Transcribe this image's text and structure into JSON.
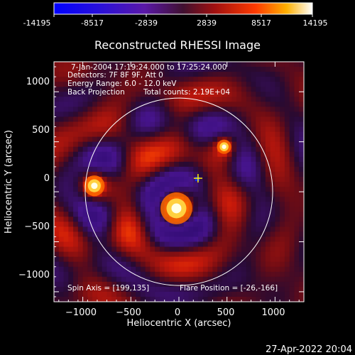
{
  "colorbar": {
    "tick_labels": [
      "-14195",
      "-8517",
      "-2839",
      "2839",
      "8517",
      "14195"
    ],
    "min": -14195,
    "max": 14195
  },
  "timestamp": "27-Apr-2022 20:04",
  "chart_data": {
    "type": "heatmap",
    "title": "Reconstructed RHESSI Image",
    "xlabel": "Heliocentric X (arcsec)",
    "ylabel": "Heliocentric Y (arcsec)",
    "xlim": [
      -1300,
      1300
    ],
    "ylim": [
      -1100,
      1300
    ],
    "x_ticks": [
      -1000,
      -500,
      0,
      500,
      1000
    ],
    "y_ticks": [
      -1000,
      -500,
      0,
      500,
      1000
    ],
    "x_tick_labels": [
      "−1000",
      "−500",
      "0",
      "500",
      "1000"
    ],
    "y_tick_labels": [
      "−1000",
      "−500",
      "0",
      "500",
      "1000"
    ],
    "annotations": {
      "time_range": "7-Jan-2004 17:19:24.000 to 17:25:24.000",
      "detectors": "Detectors: 7F 8F 9F, Att 0",
      "energy_range": "Energy Range: 6.0 - 12.0 keV",
      "method": "Back Projection",
      "total_counts": "Total counts: 2.19E+04",
      "spin_axis": "Spin Axis = [199,135]",
      "flare_position": "Flare Position = [-26,-166]"
    },
    "solar_limb_radius_arcsec": 975,
    "sources": [
      {
        "x": -26,
        "y": -166,
        "intensity": 1.0
      },
      {
        "x": -880,
        "y": 60,
        "intensity": 0.65
      },
      {
        "x": 470,
        "y": 450,
        "intensity": 0.45
      }
    ],
    "spin_axis_marker": {
      "x": 199,
      "y": 135
    }
  }
}
